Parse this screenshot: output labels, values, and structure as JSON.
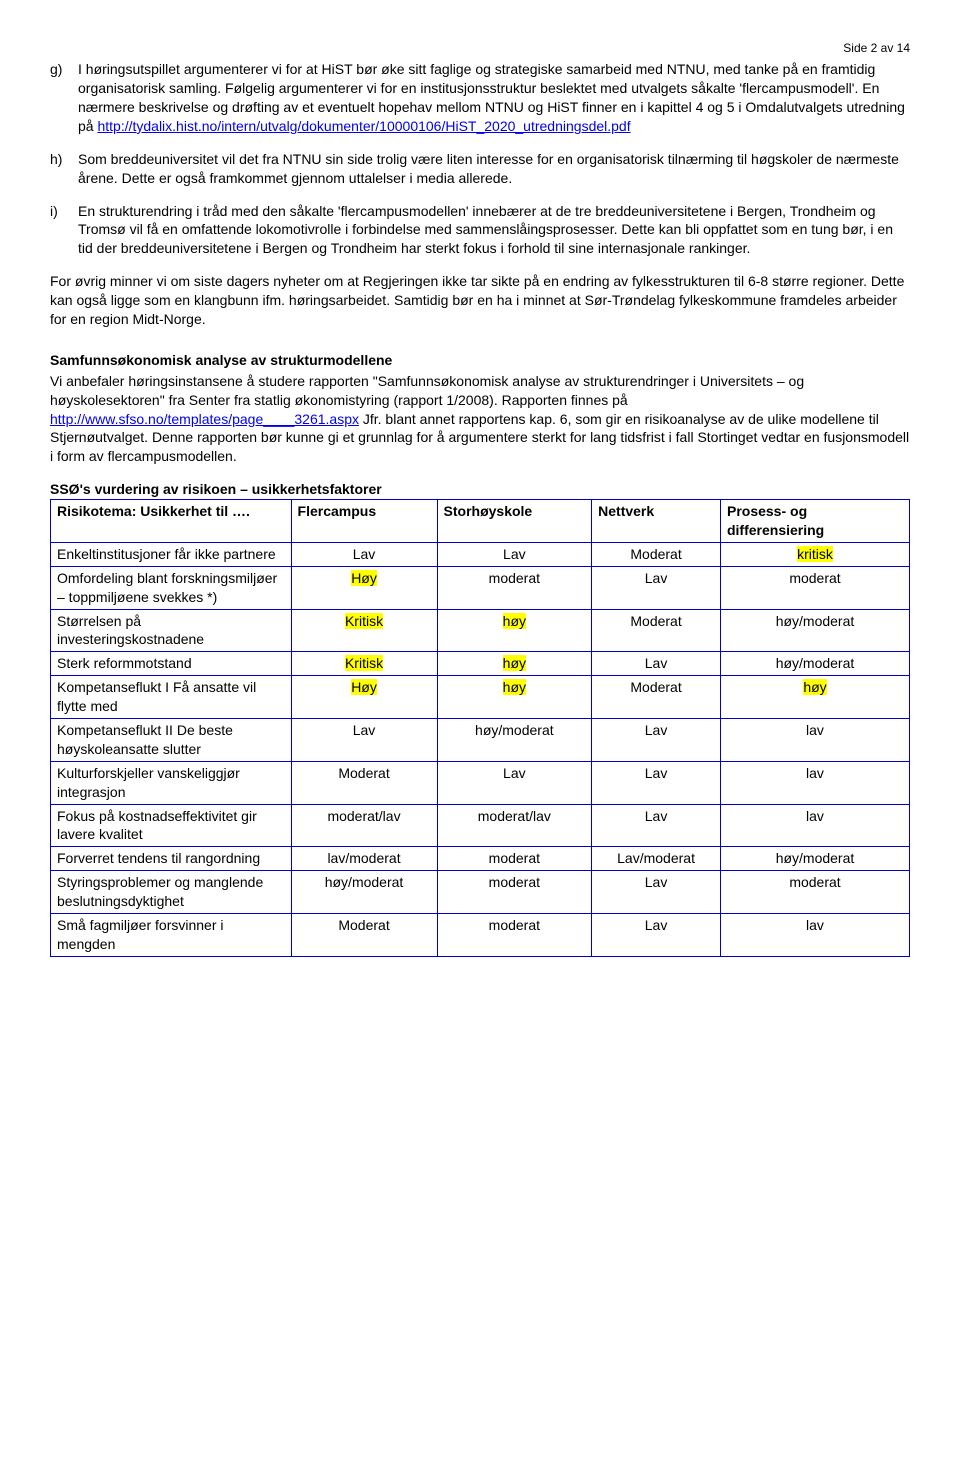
{
  "page_number": "Side 2 av 14",
  "items": {
    "g": {
      "marker": "g)",
      "text_before_link": "I høringsutspillet argumenterer vi for at HiST bør øke sitt faglige og strategiske samarbeid med NTNU, med tanke på en framtidig organisatorisk samling. Følgelig argumenterer vi for en institusjonsstruktur beslektet med utvalgets såkalte 'flercampusmodell'. En nærmere beskrivelse og drøfting av et eventuelt hopehav mellom NTNU og HiST finner en i kapittel 4 og 5 i Omdalutvalgets utredning på ",
      "link1": "http://tydalix.hist.no/intern/utvalg/dokumenter/10000106/HiST_2020_utredningsdel.pdf"
    },
    "h": {
      "marker": "h)",
      "text": "Som breddeuniversitet vil det fra NTNU sin side trolig være liten interesse for en organisatorisk tilnærming til høgskoler de nærmeste årene. Dette er også framkommet gjennom uttalelser i media allerede."
    },
    "i": {
      "marker": "i)",
      "text": "En strukturendring i tråd med den såkalte 'flercampusmodellen' innebærer at de tre breddeuniversitetene i Bergen, Trondheim og Tromsø vil få en omfattende lokomotivrolle i forbindelse med sammenslåingsprosesser. Dette kan bli oppfattet som en tung bør, i en tid der breddeuniversitetene i Bergen og Trondheim har sterkt fokus i forhold til sine internasjonale rankinger."
    }
  },
  "closing_para": "For øvrig minner vi om siste dagers nyheter om at Regjeringen ikke tar sikte på en endring av fylkesstrukturen til 6-8 større regioner. Dette kan også ligge som en klangbunn ifm. høringsarbeidet. Samtidig bør en ha i minnet at Sør-Trøndelag fylkeskommune framdeles arbeider for en region Midt-Norge.",
  "section": {
    "heading": "Samfunnsøkonomisk analyse av strukturmodellene",
    "body_before_link": "Vi anbefaler høringsinstansene å studere rapporten \"Samfunnsøkonomisk analyse av strukturendringer i Universitets – og høyskolesektoren\" fra Senter fra statlig økonomistyring (rapport 1/2008). Rapporten finnes på ",
    "link": "http://www.sfso.no/templates/page____3261.aspx",
    "body_after_link": "  Jfr. blant annet rapportens kap. 6, som gir en risikoanalyse av de ulike modellene til Stjernøutvalget. Denne rapporten bør kunne gi et grunnlag for å argumentere sterkt for lang tidsfrist i fall Stortinget vedtar en fusjonsmodell i form av flercampusmodellen."
  },
  "table": {
    "title": "SSØ's vurdering av risikoen – usikkerhetsfaktorer",
    "headers": [
      "Risikotema: Usikkerhet til ….",
      "Flercampus",
      "Storhøyskole",
      "Nettverk",
      "Prosess- og differensiering"
    ],
    "rows": [
      {
        "label": "Enkeltinstitusjoner får ikke partnere",
        "cells": [
          {
            "t": "Lav",
            "hl": false
          },
          {
            "t": "Lav",
            "hl": false
          },
          {
            "t": "Moderat",
            "hl": false
          },
          {
            "t": "kritisk",
            "hl": true
          }
        ]
      },
      {
        "label": "Omfordeling blant forskningsmiljøer – toppmiljøene svekkes *)",
        "cells": [
          {
            "t": "Høy",
            "hl": true
          },
          {
            "t": "moderat",
            "hl": false
          },
          {
            "t": "Lav",
            "hl": false
          },
          {
            "t": "moderat",
            "hl": false
          }
        ]
      },
      {
        "label": "Størrelsen på investeringskostnadene",
        "cells": [
          {
            "t": "Kritisk",
            "hl": true
          },
          {
            "t": "høy",
            "hl": true
          },
          {
            "t": "Moderat",
            "hl": false
          },
          {
            "t": "høy/moderat",
            "hl": false
          }
        ]
      },
      {
        "label": "Sterk reformmotstand",
        "cells": [
          {
            "t": "Kritisk",
            "hl": true
          },
          {
            "t": "høy",
            "hl": true
          },
          {
            "t": "Lav",
            "hl": false
          },
          {
            "t": "høy/moderat",
            "hl": false
          }
        ]
      },
      {
        "label": "Kompetanseflukt I Få ansatte vil flytte med",
        "cells": [
          {
            "t": "Høy",
            "hl": true
          },
          {
            "t": "høy",
            "hl": true
          },
          {
            "t": "Moderat",
            "hl": false
          },
          {
            "t": "høy",
            "hl": true
          }
        ]
      },
      {
        "label": "Kompetanseflukt II De beste høyskoleansatte slutter",
        "cells": [
          {
            "t": "Lav",
            "hl": false
          },
          {
            "t": "høy/moderat",
            "hl": false
          },
          {
            "t": "Lav",
            "hl": false
          },
          {
            "t": "lav",
            "hl": false
          }
        ]
      },
      {
        "label": "Kulturforskjeller vanskeliggjør integrasjon",
        "cells": [
          {
            "t": "Moderat",
            "hl": false
          },
          {
            "t": "Lav",
            "hl": false
          },
          {
            "t": "Lav",
            "hl": false
          },
          {
            "t": "lav",
            "hl": false
          }
        ]
      },
      {
        "label": "Fokus på kostnadseffektivitet gir lavere kvalitet",
        "cells": [
          {
            "t": "moderat/lav",
            "hl": false
          },
          {
            "t": "moderat/lav",
            "hl": false
          },
          {
            "t": "Lav",
            "hl": false
          },
          {
            "t": "lav",
            "hl": false
          }
        ]
      },
      {
        "label": "Forverret tendens til rangordning",
        "cells": [
          {
            "t": "lav/moderat",
            "hl": false
          },
          {
            "t": "moderat",
            "hl": false
          },
          {
            "t": "Lav/moderat",
            "hl": false
          },
          {
            "t": "høy/moderat",
            "hl": false
          }
        ]
      },
      {
        "label": "Styringsproblemer og manglende beslutningsdyktighet",
        "cells": [
          {
            "t": "høy/moderat",
            "hl": false
          },
          {
            "t": "moderat",
            "hl": false
          },
          {
            "t": "Lav",
            "hl": false
          },
          {
            "t": "moderat",
            "hl": false
          }
        ]
      },
      {
        "label": "Små fagmiljøer forsvinner i mengden",
        "cells": [
          {
            "t": "Moderat",
            "hl": false
          },
          {
            "t": "moderat",
            "hl": false
          },
          {
            "t": "Lav",
            "hl": false
          },
          {
            "t": "lav",
            "hl": false
          }
        ]
      }
    ]
  }
}
